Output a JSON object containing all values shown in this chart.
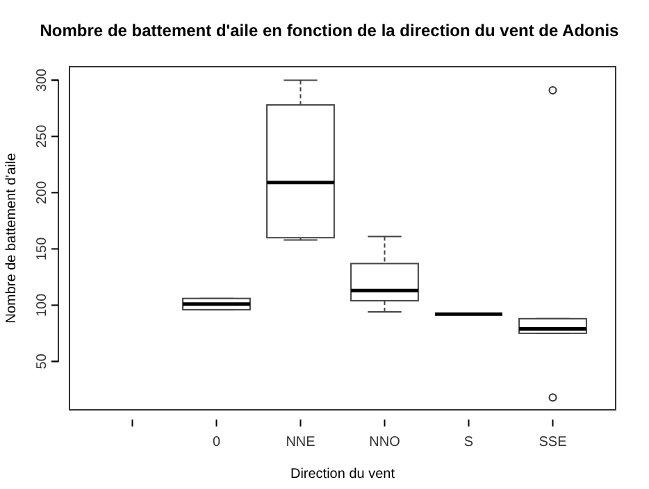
{
  "chart_data": {
    "type": "box",
    "title": "Nombre de battement d'aile en fonction de la direction du vent de Adonis",
    "xlabel": "Direction du vent",
    "ylabel": "Nombre de battement d'aile",
    "categories": [
      null,
      "0",
      "NNE",
      "NNO",
      "S",
      "SSE"
    ],
    "ylim": [
      7,
      312
    ],
    "yticks": [
      50,
      100,
      150,
      200,
      250,
      300
    ],
    "grid": false,
    "boxes": [
      null,
      {
        "low": 96,
        "q1": 96,
        "median": 101,
        "q3": 106,
        "high": 106
      },
      {
        "low": 158,
        "q1": 160,
        "median": 209,
        "q3": 278,
        "high": 300
      },
      {
        "low": 94,
        "q1": 104,
        "median": 113,
        "q3": 137,
        "high": 161
      },
      {
        "low": 92,
        "q1": 92,
        "median": 92,
        "q3": 92,
        "high": 92
      },
      {
        "low": 75,
        "q1": 75,
        "median": 79,
        "q3": 88,
        "high": 88,
        "outliers": [
          291,
          18
        ]
      }
    ]
  }
}
